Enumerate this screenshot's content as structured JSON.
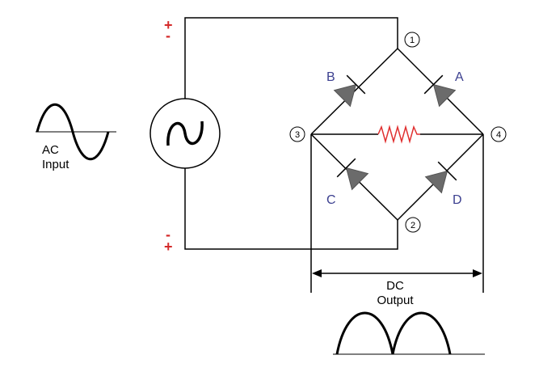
{
  "input_label": {
    "line1": "AC",
    "line2": "Input"
  },
  "polarity": {
    "top": {
      "plus": "+",
      "minus": "-"
    },
    "bottom": {
      "minus": "-",
      "plus": "+"
    }
  },
  "diodes": {
    "a": "A",
    "b": "B",
    "c": "C",
    "d": "D"
  },
  "nodes": {
    "n1": "1",
    "n2": "2",
    "n3": "3",
    "n4": "4"
  },
  "output_label": {
    "line1": "DC",
    "line2": "Output"
  },
  "colors": {
    "wire": "#000000",
    "diode_fill": "#6b6b6b",
    "diode_label": "#3b3f8f",
    "polarity": "#d42a2a",
    "resistor": "#e03030"
  }
}
